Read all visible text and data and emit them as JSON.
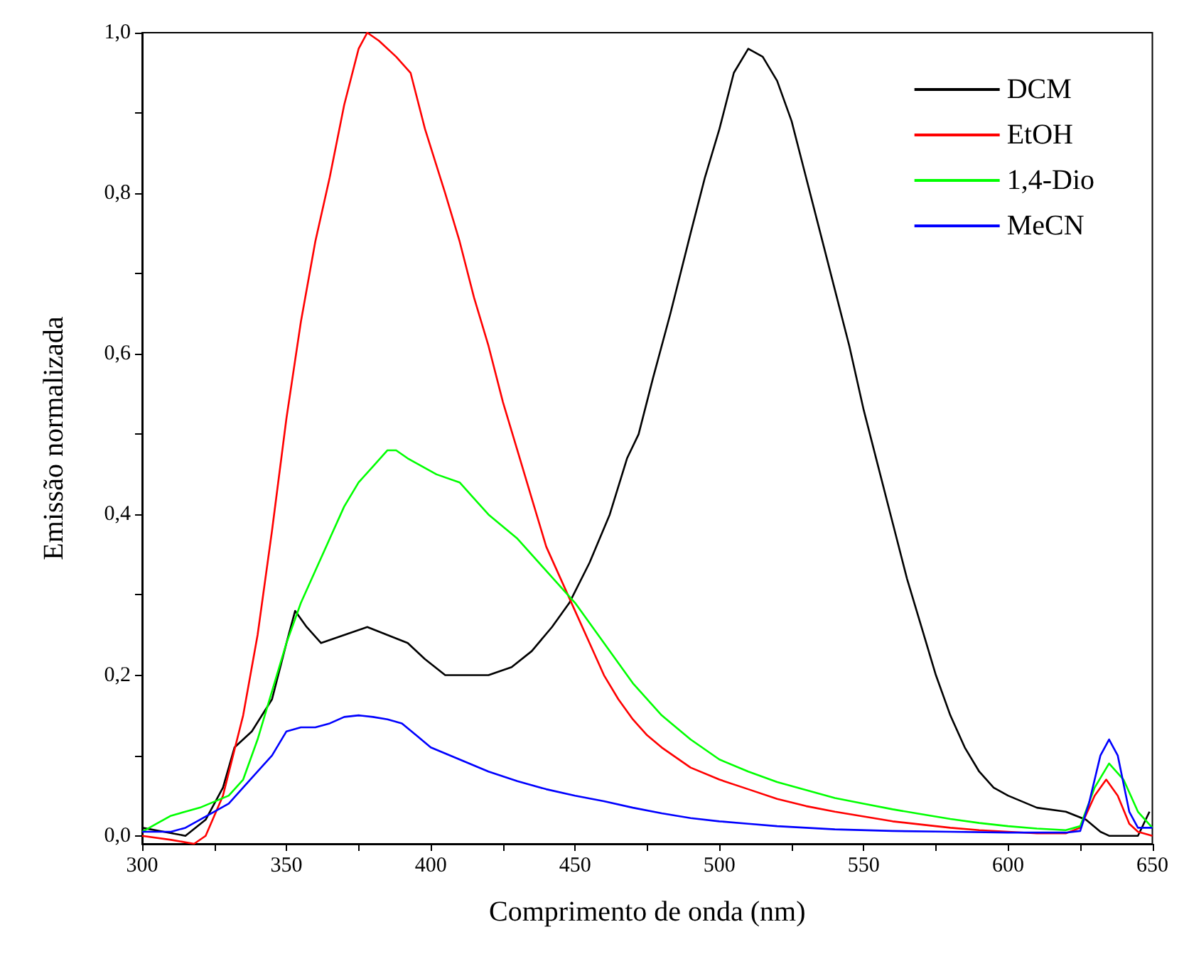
{
  "chart_data": {
    "type": "line",
    "xlabel": "Comprimento de onda (nm)",
    "ylabel": "Emissão normalizada",
    "xlim": [
      300,
      650
    ],
    "ylim": [
      -0.01,
      1.0
    ],
    "xticks": [
      300,
      {
        "value": 325,
        "label": null
      },
      350,
      {
        "value": 375,
        "label": null
      },
      400,
      {
        "value": 425,
        "label": null
      },
      450,
      {
        "value": 475,
        "label": null
      },
      500,
      {
        "value": 525,
        "label": null
      },
      550,
      {
        "value": 575,
        "label": null
      },
      600,
      {
        "value": 625,
        "label": null
      },
      650
    ],
    "yticks": [
      {
        "value": 0,
        "label": "0,0"
      },
      {
        "value": 0.1,
        "label": null
      },
      {
        "value": 0.2,
        "label": "0,2"
      },
      {
        "value": 0.3,
        "label": null
      },
      {
        "value": 0.4,
        "label": "0,4"
      },
      {
        "value": 0.5,
        "label": null
      },
      {
        "value": 0.6,
        "label": "0,6"
      },
      {
        "value": 0.7,
        "label": null
      },
      {
        "value": 0.8,
        "label": "0,8"
      },
      {
        "value": 0.9,
        "label": null
      },
      {
        "value": 1.0,
        "label": "1,0"
      }
    ],
    "grid": false,
    "legend": "top right",
    "marker": "none",
    "line_style": "solid",
    "series": [
      {
        "name": "DCM",
        "color": "#000000",
        "x": [
          300,
          315,
          322,
          328,
          332,
          338,
          345,
          350,
          353,
          357,
          362,
          370,
          378,
          385,
          392,
          398,
          405,
          412,
          420,
          428,
          435,
          442,
          448,
          455,
          462,
          468,
          472,
          477,
          483,
          490,
          495,
          500,
          505,
          510,
          515,
          520,
          525,
          530,
          535,
          540,
          545,
          550,
          555,
          560,
          565,
          570,
          575,
          580,
          585,
          590,
          595,
          600,
          610,
          620,
          627,
          632,
          635,
          640,
          645,
          649
        ],
        "values": [
          0.01,
          0.0,
          0.02,
          0.06,
          0.11,
          0.13,
          0.17,
          0.24,
          0.28,
          0.26,
          0.24,
          0.25,
          0.26,
          0.25,
          0.24,
          0.22,
          0.2,
          0.2,
          0.2,
          0.21,
          0.23,
          0.26,
          0.29,
          0.34,
          0.4,
          0.47,
          0.5,
          0.57,
          0.65,
          0.75,
          0.82,
          0.88,
          0.95,
          0.98,
          0.97,
          0.94,
          0.89,
          0.82,
          0.75,
          0.68,
          0.61,
          0.53,
          0.46,
          0.39,
          0.32,
          0.26,
          0.2,
          0.15,
          0.11,
          0.08,
          0.06,
          0.05,
          0.035,
          0.03,
          0.02,
          0.005,
          0.0,
          0.0,
          0.0,
          0.03
        ]
      },
      {
        "name": "EtOH",
        "color": "#ff0000",
        "x": [
          300,
          310,
          318,
          322,
          328,
          335,
          340,
          345,
          350,
          355,
          360,
          365,
          370,
          375,
          378,
          382,
          388,
          393,
          398,
          405,
          410,
          415,
          420,
          425,
          430,
          435,
          440,
          445,
          450,
          455,
          460,
          465,
          470,
          475,
          480,
          490,
          500,
          510,
          520,
          530,
          540,
          550,
          560,
          570,
          580,
          590,
          600,
          610,
          620,
          625,
          630,
          634,
          638,
          642,
          645,
          650
        ],
        "values": [
          0.0,
          -0.005,
          -0.01,
          0.0,
          0.05,
          0.15,
          0.25,
          0.38,
          0.52,
          0.64,
          0.74,
          0.82,
          0.91,
          0.98,
          1.0,
          0.99,
          0.97,
          0.95,
          0.88,
          0.8,
          0.74,
          0.67,
          0.61,
          0.54,
          0.48,
          0.42,
          0.36,
          0.32,
          0.28,
          0.24,
          0.2,
          0.17,
          0.145,
          0.125,
          0.11,
          0.085,
          0.07,
          0.058,
          0.046,
          0.037,
          0.03,
          0.024,
          0.018,
          0.014,
          0.01,
          0.007,
          0.005,
          0.003,
          0.003,
          0.01,
          0.05,
          0.07,
          0.05,
          0.015,
          0.005,
          0.0
        ]
      },
      {
        "name": "1,4-Dio",
        "color": "#00ff00",
        "x": [
          300,
          305,
          310,
          320,
          330,
          335,
          340,
          345,
          350,
          355,
          360,
          365,
          370,
          375,
          380,
          385,
          388,
          392,
          397,
          402,
          410,
          415,
          420,
          430,
          440,
          450,
          460,
          470,
          480,
          490,
          500,
          510,
          520,
          530,
          540,
          550,
          560,
          570,
          580,
          590,
          600,
          610,
          620,
          625,
          630,
          635,
          640,
          645,
          650
        ],
        "values": [
          0.005,
          0.015,
          0.025,
          0.035,
          0.05,
          0.07,
          0.12,
          0.18,
          0.24,
          0.29,
          0.33,
          0.37,
          0.41,
          0.44,
          0.46,
          0.48,
          0.48,
          0.47,
          0.46,
          0.45,
          0.44,
          0.42,
          0.4,
          0.37,
          0.33,
          0.29,
          0.24,
          0.19,
          0.15,
          0.12,
          0.095,
          0.08,
          0.067,
          0.057,
          0.047,
          0.04,
          0.033,
          0.027,
          0.021,
          0.016,
          0.012,
          0.009,
          0.007,
          0.012,
          0.06,
          0.09,
          0.07,
          0.03,
          0.01
        ]
      },
      {
        "name": "MeCN",
        "color": "#0000ff",
        "x": [
          300,
          310,
          315,
          320,
          330,
          340,
          345,
          350,
          355,
          360,
          365,
          370,
          375,
          380,
          385,
          390,
          395,
          400,
          410,
          420,
          430,
          440,
          450,
          460,
          470,
          480,
          490,
          500,
          510,
          520,
          530,
          540,
          560,
          580,
          600,
          620,
          625,
          628,
          632,
          635,
          638,
          642,
          645,
          650
        ],
        "values": [
          0.005,
          0.005,
          0.01,
          0.02,
          0.04,
          0.08,
          0.1,
          0.13,
          0.135,
          0.135,
          0.14,
          0.148,
          0.15,
          0.148,
          0.145,
          0.14,
          0.125,
          0.11,
          0.095,
          0.08,
          0.068,
          0.058,
          0.05,
          0.043,
          0.035,
          0.028,
          0.022,
          0.018,
          0.015,
          0.012,
          0.01,
          0.008,
          0.006,
          0.005,
          0.004,
          0.004,
          0.006,
          0.04,
          0.1,
          0.12,
          0.1,
          0.03,
          0.01,
          0.01
        ]
      }
    ]
  }
}
